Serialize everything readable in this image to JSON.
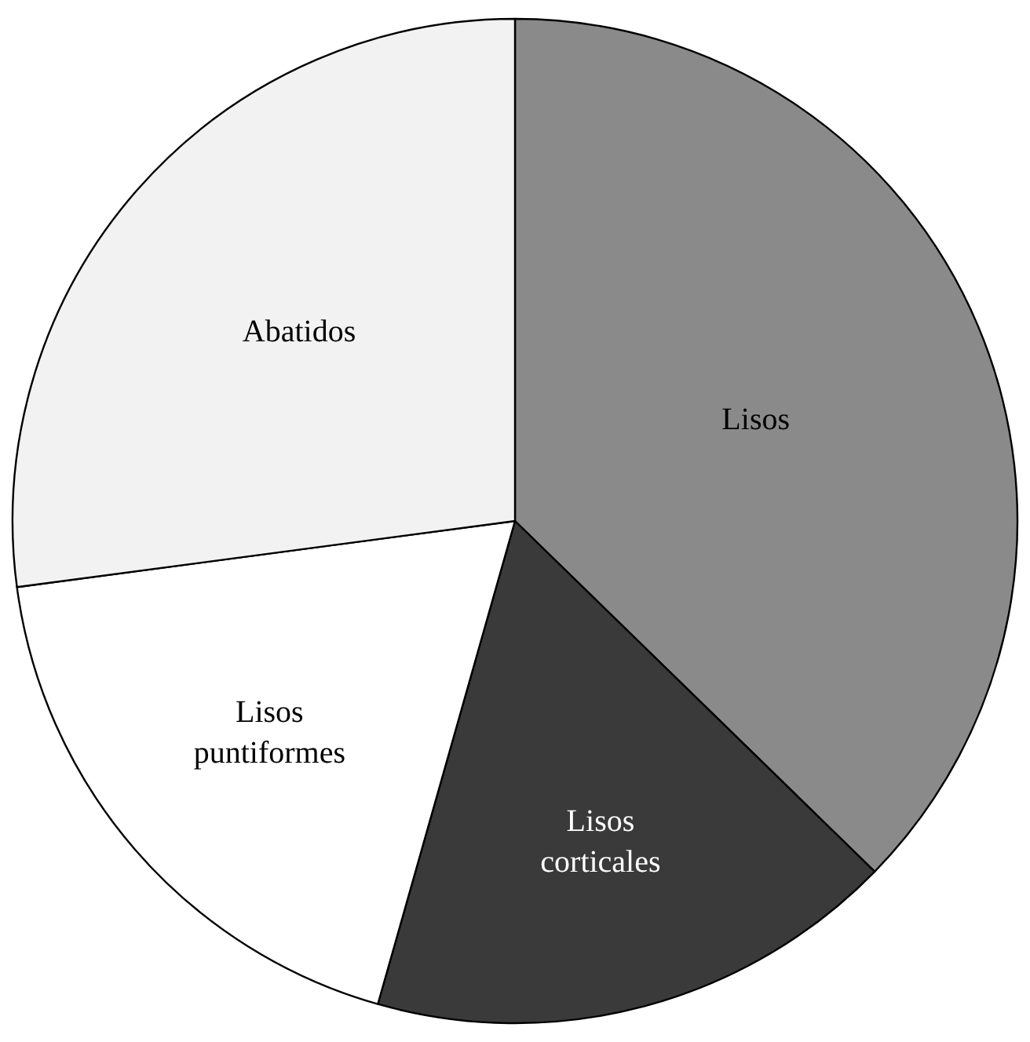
{
  "chart_data": {
    "type": "pie",
    "categories": [
      "Lisos",
      "Lisos corticales",
      "Lisos puntiformes",
      "Abatidos"
    ],
    "values": [
      37.3,
      17.1,
      18.5,
      27.1
    ],
    "colors": [
      "#8a8a8a",
      "#3a3a3a",
      "#ffffff",
      "#f2f2f2"
    ],
    "legend": false
  }
}
